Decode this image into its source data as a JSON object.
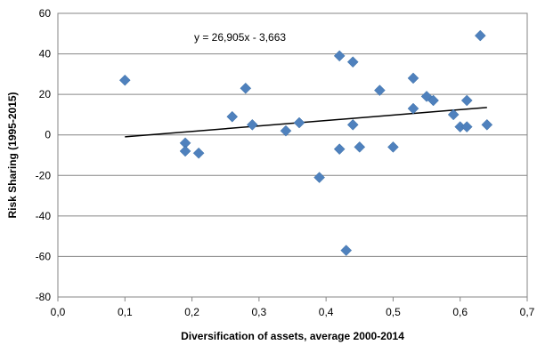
{
  "chart_data": {
    "type": "scatter",
    "title": "",
    "xlabel": "Diversification of assets, average 2000-2014",
    "ylabel": "Risk Sharing (1995-2015)",
    "xlim": [
      0,
      0.7
    ],
    "ylim": [
      -80,
      60
    ],
    "x_ticks": [
      "0,0",
      "0,1",
      "0,2",
      "0,3",
      "0,4",
      "0,5",
      "0,6",
      "0,7"
    ],
    "y_ticks": [
      "-80",
      "-60",
      "-40",
      "-20",
      "0",
      "20",
      "40",
      "60"
    ],
    "grid": "horizontal",
    "legend": "none",
    "marker_color": "#4f81bd",
    "trendline": {
      "equation": "y = 26,905x - 3,663",
      "slope": 26.905,
      "intercept": -3.663,
      "x_range": [
        0.1,
        0.64
      ],
      "color": "#000000"
    },
    "points": [
      {
        "x": 0.1,
        "y": 27
      },
      {
        "x": 0.19,
        "y": -4
      },
      {
        "x": 0.19,
        "y": -8
      },
      {
        "x": 0.21,
        "y": -9
      },
      {
        "x": 0.26,
        "y": 9
      },
      {
        "x": 0.28,
        "y": 23
      },
      {
        "x": 0.29,
        "y": 5
      },
      {
        "x": 0.34,
        "y": 2
      },
      {
        "x": 0.36,
        "y": 6
      },
      {
        "x": 0.39,
        "y": -21
      },
      {
        "x": 0.42,
        "y": 39
      },
      {
        "x": 0.42,
        "y": -7
      },
      {
        "x": 0.43,
        "y": -57
      },
      {
        "x": 0.44,
        "y": 36
      },
      {
        "x": 0.44,
        "y": 5
      },
      {
        "x": 0.45,
        "y": -6
      },
      {
        "x": 0.48,
        "y": 22
      },
      {
        "x": 0.5,
        "y": -6
      },
      {
        "x": 0.53,
        "y": 28
      },
      {
        "x": 0.53,
        "y": 13
      },
      {
        "x": 0.55,
        "y": 19
      },
      {
        "x": 0.56,
        "y": 17
      },
      {
        "x": 0.59,
        "y": 10
      },
      {
        "x": 0.6,
        "y": 4
      },
      {
        "x": 0.61,
        "y": 17
      },
      {
        "x": 0.61,
        "y": 4
      },
      {
        "x": 0.63,
        "y": 49
      },
      {
        "x": 0.64,
        "y": 5
      }
    ]
  }
}
